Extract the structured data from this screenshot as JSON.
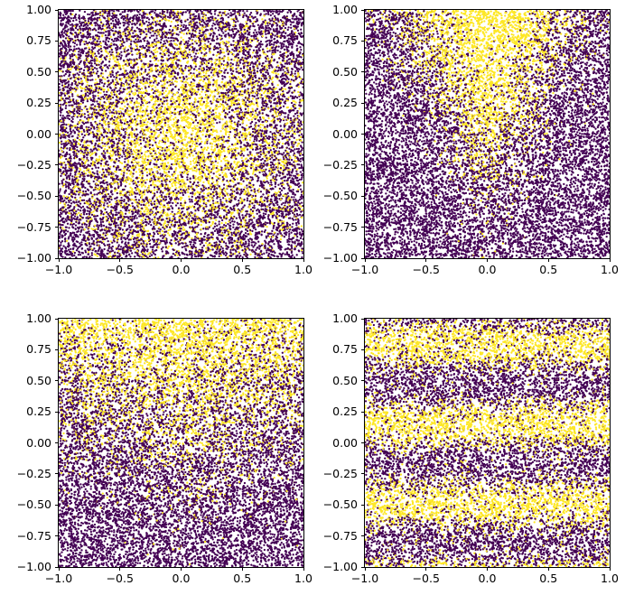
{
  "figure": {
    "background": "#ffffff",
    "rows": 2,
    "cols": 2
  },
  "chart_data": [
    {
      "type": "scatter",
      "title": "",
      "xlabel": "",
      "ylabel": "",
      "xlim": [
        -1,
        1
      ],
      "ylim": [
        -1,
        1
      ],
      "grid": false,
      "legend": "none",
      "n_points": 13000,
      "point_colors": {
        "class0": "#440154",
        "class1": "#fde725"
      },
      "pattern_description": "two-class scatter: yellow class concentrated in a radial blob at the center (0,0), purple elsewhere, heavy label noise",
      "seed": 101,
      "gen": {
        "kind": "radial",
        "r0": 0.55,
        "noise": 0.5
      },
      "x_ticks": [
        {
          "value": -1.0,
          "label": "−1.0"
        },
        {
          "value": -0.5,
          "label": "−0.5"
        },
        {
          "value": 0.0,
          "label": "0.0"
        },
        {
          "value": 0.5,
          "label": "0.5"
        },
        {
          "value": 1.0,
          "label": "1.0"
        }
      ],
      "y_ticks": [
        {
          "value": 1.0,
          "label": "1.00"
        },
        {
          "value": 0.75,
          "label": "0.75"
        },
        {
          "value": 0.5,
          "label": "0.50"
        },
        {
          "value": 0.25,
          "label": "0.25"
        },
        {
          "value": 0.0,
          "label": "0.00"
        },
        {
          "value": -0.25,
          "label": "−0.25"
        },
        {
          "value": -0.5,
          "label": "−0.50"
        },
        {
          "value": -0.75,
          "label": "−0.75"
        },
        {
          "value": -1.0,
          "label": "−1.00"
        }
      ]
    },
    {
      "type": "scatter",
      "title": "",
      "xlabel": "",
      "ylabel": "",
      "xlim": [
        -1,
        1
      ],
      "ylim": [
        -1,
        1
      ],
      "grid": false,
      "legend": "none",
      "n_points": 13000,
      "point_colors": {
        "class0": "#440154",
        "class1": "#fde725"
      },
      "pattern_description": "two-class scatter: yellow class forms a cone/wedge widening toward the top center, purple elsewhere, heavy label noise",
      "seed": 202,
      "gen": {
        "kind": "cone",
        "slope": 1.8,
        "offset": 0.15,
        "noise": 0.5
      },
      "x_ticks": [
        {
          "value": -1.0,
          "label": "−1.0"
        },
        {
          "value": -0.5,
          "label": "−0.5"
        },
        {
          "value": 0.0,
          "label": "0.0"
        },
        {
          "value": 0.5,
          "label": "0.5"
        },
        {
          "value": 1.0,
          "label": "1.0"
        }
      ],
      "y_ticks": [
        {
          "value": 1.0,
          "label": "1.00"
        },
        {
          "value": 0.75,
          "label": "0.75"
        },
        {
          "value": 0.5,
          "label": "0.50"
        },
        {
          "value": 0.25,
          "label": "0.25"
        },
        {
          "value": 0.0,
          "label": "0.00"
        },
        {
          "value": -0.25,
          "label": "−0.25"
        },
        {
          "value": -0.5,
          "label": "−0.50"
        },
        {
          "value": -0.75,
          "label": "−0.75"
        },
        {
          "value": -1.0,
          "label": "−1.00"
        }
      ]
    },
    {
      "type": "scatter",
      "title": "",
      "xlabel": "",
      "ylabel": "",
      "xlim": [
        -1,
        1
      ],
      "ylim": [
        -1,
        1
      ],
      "grid": false,
      "legend": "none",
      "n_points": 13000,
      "point_colors": {
        "class0": "#440154",
        "class1": "#fde725"
      },
      "pattern_description": "two-class scatter: yellow class density increases toward the top of the plot (strongest at top center), purple dominates bottom, heavy label noise",
      "seed": 303,
      "gen": {
        "kind": "top",
        "offset": 0.25,
        "xslope": 0.35,
        "noise": 0.55
      },
      "x_ticks": [
        {
          "value": -1.0,
          "label": "−1.0"
        },
        {
          "value": -0.5,
          "label": "−0.5"
        },
        {
          "value": 0.0,
          "label": "0.0"
        },
        {
          "value": 0.5,
          "label": "0.5"
        },
        {
          "value": 1.0,
          "label": "1.0"
        }
      ],
      "y_ticks": [
        {
          "value": 1.0,
          "label": "1.00"
        },
        {
          "value": 0.75,
          "label": "0.75"
        },
        {
          "value": 0.5,
          "label": "0.50"
        },
        {
          "value": 0.25,
          "label": "0.25"
        },
        {
          "value": 0.0,
          "label": "0.00"
        },
        {
          "value": -0.25,
          "label": "−0.25"
        },
        {
          "value": -0.5,
          "label": "−0.50"
        },
        {
          "value": -0.75,
          "label": "−0.75"
        },
        {
          "value": -1.0,
          "label": "−1.00"
        }
      ]
    },
    {
      "type": "scatter",
      "title": "",
      "xlabel": "",
      "ylabel": "",
      "xlim": [
        -1,
        1
      ],
      "ylim": [
        -1,
        1
      ],
      "grid": false,
      "legend": "none",
      "n_points": 13000,
      "point_colors": {
        "class0": "#440154",
        "class1": "#fde725"
      },
      "pattern_description": "two-class scatter: yellow class forms three horizontal bands centered near y=0.79, y=0.15 and y=-0.49 (periodic in y), purple between bands, heavy label noise",
      "seed": 404,
      "gen": {
        "kind": "bands",
        "period": 0.64,
        "phase": 0.15,
        "amp": 0.6,
        "offset": -0.1,
        "noise": 0.45
      },
      "x_ticks": [
        {
          "value": -1.0,
          "label": "−1.0"
        },
        {
          "value": -0.5,
          "label": "−0.5"
        },
        {
          "value": 0.0,
          "label": "0.0"
        },
        {
          "value": 0.5,
          "label": "0.5"
        },
        {
          "value": 1.0,
          "label": "1.0"
        }
      ],
      "y_ticks": [
        {
          "value": 1.0,
          "label": "1.00"
        },
        {
          "value": 0.75,
          "label": "0.75"
        },
        {
          "value": 0.5,
          "label": "0.50"
        },
        {
          "value": 0.25,
          "label": "0.25"
        },
        {
          "value": 0.0,
          "label": "0.00"
        },
        {
          "value": -0.25,
          "label": "−0.25"
        },
        {
          "value": -0.5,
          "label": "−0.50"
        },
        {
          "value": -0.75,
          "label": "−0.75"
        },
        {
          "value": -1.0,
          "label": "−1.00"
        }
      ]
    }
  ]
}
